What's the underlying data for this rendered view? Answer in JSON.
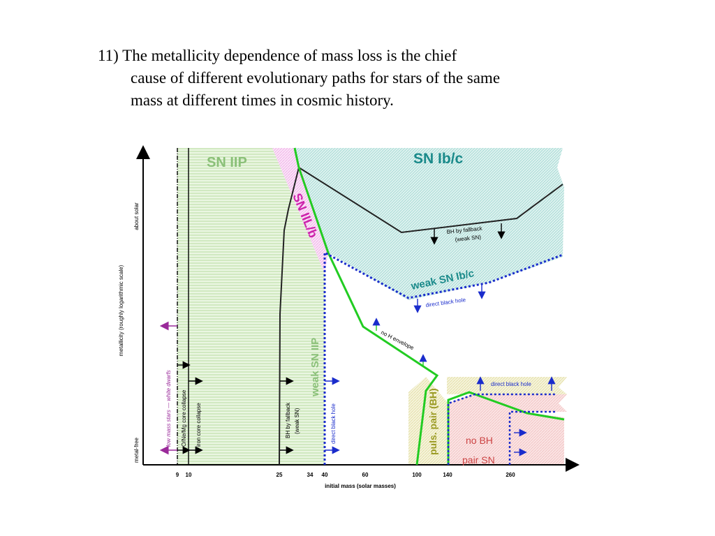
{
  "slide": {
    "lines": [
      "11) The metallicity dependence of mass loss is the chief",
      "cause of different evolutionary paths for stars of the same",
      "mass at different times in cosmic history."
    ]
  },
  "diagram": {
    "regions": {
      "sn_iip": "SN IIP",
      "sn_ibc": "SN Ib/c",
      "sn_iilb": "SN IIL/b",
      "weak_sn_ibc": "weak SN Ib/c",
      "weak_sn_iip": "weak SN IIP",
      "puls_pair": "puls. pair (BH)",
      "no_bh": "no BH",
      "pair_sn": "pair SN"
    },
    "annotations": {
      "bh_fallback_top_1": "BH by fallback",
      "bh_fallback_top_2": "(weak SN)",
      "direct_bh_upper": "direct black hole",
      "no_h_envelope": "no H envelope",
      "direct_bh_right": "direct black hole",
      "low_mass_stars": "low mass stars — white dwarfs",
      "onemg_collapse": "O/Ne/Mg core collapse",
      "iron_collapse": "iron core collapse",
      "bh_fallback_low_1": "BH by fallback",
      "bh_fallback_low_2": "(weak SN)",
      "direct_bh_vertical": "direct black hole"
    },
    "axes": {
      "xlabel": "initial mass (solar masses)",
      "ylabel": "metallicity (roughly logarithmic scale)",
      "y_top_label": "about solar",
      "y_bottom_label": "metal-free",
      "x_ticks": [
        "9",
        "10",
        "25",
        "34",
        "40",
        "60",
        "100",
        "140",
        "260"
      ]
    },
    "colors": {
      "sn_iip": "#b8dca0",
      "sn_ibc": "#8fd0c8",
      "sn_iilb": "#f0a8e8",
      "pair": "#f4c4c4",
      "puls": "#e4e0a0",
      "green_line": "#22cc22",
      "blue_line": "#1a2ccc",
      "purple": "#9a2a9a",
      "teal_text": "#1a8a8a",
      "magenta_text": "#cc22aa"
    }
  }
}
